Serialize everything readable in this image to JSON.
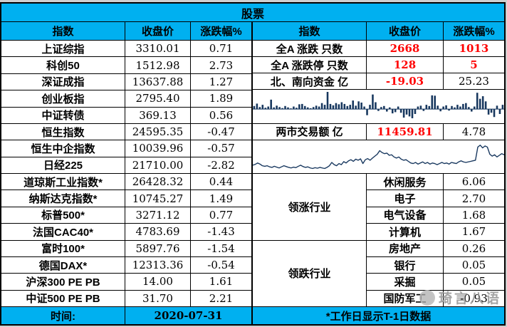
{
  "page": {
    "title": "股票"
  },
  "colors": {
    "header_bg": "#00b0f0",
    "red": "#ff0000",
    "navy": "#17375e",
    "border": "#000000"
  },
  "left_table": {
    "headers": [
      "指数",
      "收盘价",
      "涨跌幅%"
    ],
    "rows": [
      {
        "label": "上证综指",
        "close": "3310.01",
        "chg": "0.71"
      },
      {
        "label": "科创50",
        "close": "1512.98",
        "chg": "2.73"
      },
      {
        "label": "深证成指",
        "close": "13637.88",
        "chg": "1.27"
      },
      {
        "label": "创业板指",
        "close": "2795.40",
        "chg": "1.89"
      },
      {
        "label": "中证转债",
        "close": "369.13",
        "chg": "0.56"
      },
      {
        "label": "恒生指数",
        "close": "24595.35",
        "chg": "-0.47"
      },
      {
        "label": "恒生中企指数",
        "close": "10039.96",
        "chg": "-0.57"
      },
      {
        "label": "日经225",
        "close": "21710.00",
        "chg": "-2.82"
      },
      {
        "label": "道琼斯工业指数*",
        "close": "26428.32",
        "chg": "0.44"
      },
      {
        "label": "纳斯达克指数*",
        "close": "10745.27",
        "chg": "1.49"
      },
      {
        "label": "标普500*",
        "close": "3271.12",
        "chg": "0.77"
      },
      {
        "label": "法国CAC40*",
        "close": "4783.69",
        "chg": "-1.43"
      },
      {
        "label": "富时100*",
        "close": "5897.76",
        "chg": "-1.54"
      },
      {
        "label": "德国DAX*",
        "close": "12313.36",
        "chg": "-0.54"
      },
      {
        "label": "沪深300 PE PB",
        "close": "14.00",
        "chg": "1.61"
      },
      {
        "label": "中证500 PE PB",
        "close": "31.70",
        "chg": "2.21"
      }
    ],
    "footer": {
      "label": "时间:",
      "value": "2020-07-31"
    }
  },
  "right_table": {
    "headers": [
      "指数",
      "收盘价",
      "涨跌幅%"
    ],
    "rows": [
      {
        "label": "全A 涨跌 只数",
        "v1": "2668",
        "v2": "1013",
        "v1_red": true,
        "v2_red": true
      },
      {
        "label": "全A 涨跌停 只数",
        "v1": "128",
        "v2": "5",
        "v1_red": true,
        "v2_red": true
      },
      {
        "label": "北、南向资金 亿",
        "v1": "-19.03",
        "v2": "25.23",
        "v1_red": true,
        "v2_red": false
      }
    ],
    "turnover_row": {
      "label": "两市交易额 亿",
      "v1": "11459.81",
      "v2": "4.78",
      "v1_red": true,
      "v2_red": false
    },
    "gainers": {
      "label": "领涨行业",
      "rows": [
        {
          "name": "休闲服务",
          "value": "6.06"
        },
        {
          "name": "电子",
          "value": "2.70"
        },
        {
          "name": "电气设备",
          "value": "1.68"
        },
        {
          "name": "计算机",
          "value": "1.67"
        }
      ]
    },
    "losers": {
      "label": "领跌行业",
      "rows": [
        {
          "name": "房地产",
          "value": "0.26"
        },
        {
          "name": "银行",
          "value": "0.05"
        },
        {
          "name": "采掘",
          "value": "0.05"
        },
        {
          "name": "国防军工",
          "value": "-0.93"
        }
      ]
    },
    "footer_note": "*工作日显示T-1日数据"
  },
  "watermark": {
    "text": "琦言八语"
  },
  "chart_data": [
    {
      "type": "bar",
      "title": "",
      "ylim": [
        -1,
        1
      ],
      "note": "unlabeled fund-flow sparkline; bars above/below zero baseline, values are normalized visual estimates",
      "values": [
        0.18,
        0.32,
        0.12,
        0.25,
        0.08,
        0.15,
        0.55,
        0.1,
        0.2,
        0.12,
        0.06,
        0.18,
        0.1,
        0.04,
        0.15,
        0.08,
        0.28,
        0.3,
        0.18,
        0.1,
        0.05,
        0.12,
        0.2,
        0.15,
        0.35,
        0.25,
        1.0,
        0.3,
        0.22,
        0.35,
        0.28,
        0.4,
        0.3,
        0.18,
        0.25,
        0.5,
        0.2,
        0.45,
        0.38,
        0.15,
        -0.5,
        0.25,
        0.85,
        0.4,
        -0.15,
        0.12,
        0.18,
        -0.2,
        0.1,
        -0.35,
        -0.25,
        0.15,
        -0.3,
        -0.7,
        -0.45,
        -0.6,
        -0.75,
        -0.4,
        0.15,
        0.2,
        -0.15,
        0.25,
        0.18,
        0.8,
        0.78,
        0.2,
        -0.18,
        0.15,
        0.22,
        -0.12,
        0.18,
        0.1,
        0.25,
        0.15,
        0.3,
        0.35,
        0.12,
        -0.2,
        0.15,
        0.95,
        0.6,
        0.75,
        0.45,
        -0.45,
        -0.3,
        -0.65,
        0.2,
        -0.4,
        0.25
      ]
    },
    {
      "type": "line",
      "title": "",
      "ylim": [
        0,
        1
      ],
      "note": "unlabeled market trend sparkline; mid peak ~50%, large peak ~92%, values are normalized visual estimates",
      "values": [
        0.22,
        0.25,
        0.3,
        0.26,
        0.2,
        0.18,
        0.2,
        0.16,
        0.14,
        0.18,
        0.15,
        0.12,
        0.16,
        0.2,
        0.17,
        0.14,
        0.12,
        0.15,
        0.13,
        0.18,
        0.22,
        0.17,
        0.14,
        0.16,
        0.12,
        0.1,
        0.13,
        0.11,
        0.14,
        0.12,
        0.1,
        0.14,
        0.2,
        0.32,
        0.24,
        0.2,
        0.28,
        0.24,
        0.35,
        0.3,
        0.38,
        0.42,
        0.36,
        0.44,
        0.4,
        0.45,
        0.28,
        0.42,
        0.46,
        0.4,
        0.48,
        0.55,
        0.62,
        0.75,
        0.68,
        0.64,
        0.66,
        0.58,
        0.6,
        0.52,
        0.48,
        0.52,
        0.44,
        0.4,
        0.42,
        0.36,
        0.3,
        0.28,
        0.32,
        0.26,
        0.3,
        0.34,
        0.28,
        0.32,
        0.26,
        0.3,
        0.28,
        0.24,
        0.28,
        0.32,
        0.28,
        0.3,
        0.26,
        0.32,
        0.3,
        0.28,
        0.34,
        0.38,
        0.34,
        0.32,
        0.34,
        0.36,
        0.38,
        0.4,
        0.88,
        0.95,
        0.85,
        0.92,
        0.88,
        0.62,
        0.55,
        0.6,
        0.52,
        0.58,
        0.64,
        0.6
      ]
    }
  ]
}
